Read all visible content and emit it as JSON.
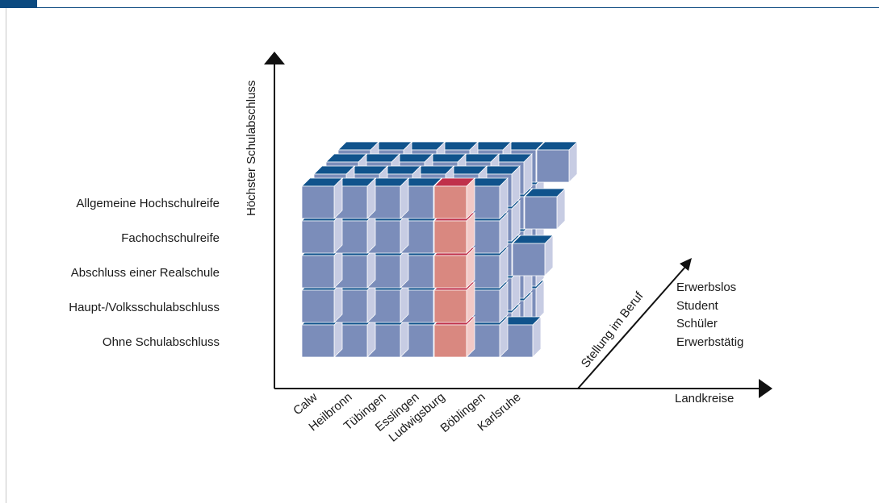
{
  "diagram": {
    "y_axis_title": "Höchster Schulabschluss",
    "x_axis_title": "Landkreise",
    "z_axis_title": "Stellung im Beruf",
    "y_levels": [
      "Allgemeine Hochschulreife",
      "Fachochschulreife",
      "Abschluss einer Realschule",
      "Haupt-/Volksschulabschluss",
      "Ohne Schulabschluss"
    ],
    "x_categories": [
      "Calw",
      "Heilbronn",
      "Tübingen",
      "Esslingen",
      "Ludwigsburg",
      "Böblingen",
      "Karlsruhe"
    ],
    "z_categories": [
      "Erwerbslos",
      "Student",
      "Schüler",
      "Erwerbstätig"
    ],
    "highlighted_column": "Ludwigsburg",
    "colors": {
      "frame": "#0c4a80",
      "cube_front": "#7b8dba",
      "cube_top": "#10538c",
      "cube_side": "#c7cce3",
      "highlight_front": "#d98880",
      "highlight_top": "#c0304a",
      "highlight_side": "#f2c9c6",
      "axis": "#111111"
    }
  }
}
